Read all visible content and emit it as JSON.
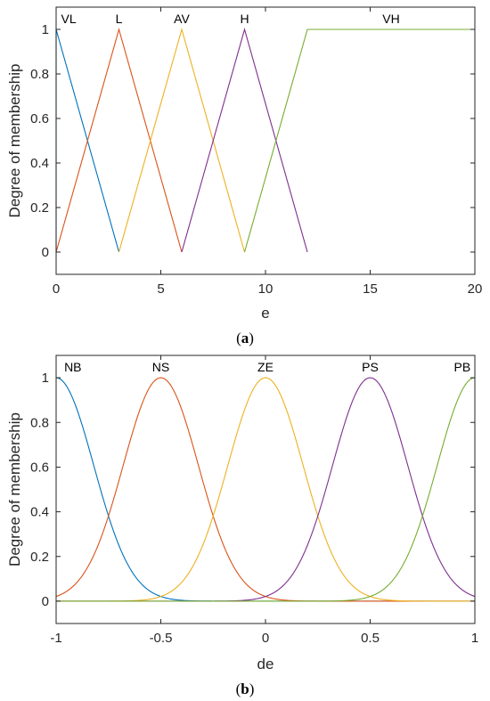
{
  "colors": [
    "#0072BD",
    "#D95319",
    "#EDB120",
    "#7E2F8E",
    "#77AC30"
  ],
  "chart_data": [
    {
      "type": "line",
      "subtype": "triangular-membership",
      "caption": {
        "open": "(",
        "letter": "a",
        "close": ")"
      },
      "xlabel": "e",
      "ylabel": "Degree of membership",
      "xlim": [
        0,
        20
      ],
      "ylim": [
        -0.1,
        1.1
      ],
      "xticks": [
        0,
        5,
        10,
        15,
        20
      ],
      "yticks": [
        0,
        0.2,
        0.4,
        0.6,
        0.8,
        1
      ],
      "grid": false,
      "series": [
        {
          "name": "VL",
          "x": [
            0,
            0,
            3
          ],
          "y": [
            0,
            1,
            0
          ],
          "label_x": 0.6
        },
        {
          "name": "L",
          "x": [
            0,
            3,
            6
          ],
          "y": [
            0,
            1,
            0
          ],
          "label_x": 3
        },
        {
          "name": "AV",
          "x": [
            3,
            6,
            9
          ],
          "y": [
            0,
            1,
            0
          ],
          "label_x": 6
        },
        {
          "name": "H",
          "x": [
            6,
            9,
            12
          ],
          "y": [
            0,
            1,
            0
          ],
          "label_x": 9
        },
        {
          "name": "VH",
          "x": [
            9,
            12,
            20
          ],
          "y": [
            0,
            1,
            1
          ],
          "label_x": 16
        }
      ]
    },
    {
      "type": "line",
      "subtype": "gaussian-membership",
      "caption": {
        "open": "(",
        "letter": "b",
        "close": ")"
      },
      "xlabel": "de",
      "ylabel": "Degree of membership",
      "xlim": [
        -1,
        1
      ],
      "ylim": [
        -0.1,
        1.1
      ],
      "xticks": [
        -1,
        -0.5,
        0,
        0.5,
        1
      ],
      "yticks": [
        0,
        0.2,
        0.4,
        0.6,
        0.8,
        1
      ],
      "grid": false,
      "series": [
        {
          "name": "NB",
          "center": -1,
          "sigma": 0.18,
          "label_x": -0.92
        },
        {
          "name": "NS",
          "center": -0.5,
          "sigma": 0.18,
          "label_x": -0.5
        },
        {
          "name": "ZE",
          "center": 0,
          "sigma": 0.18,
          "label_x": 0
        },
        {
          "name": "PS",
          "center": 0.5,
          "sigma": 0.18,
          "label_x": 0.5
        },
        {
          "name": "PB",
          "center": 1,
          "sigma": 0.18,
          "label_x": 0.94
        }
      ]
    }
  ]
}
